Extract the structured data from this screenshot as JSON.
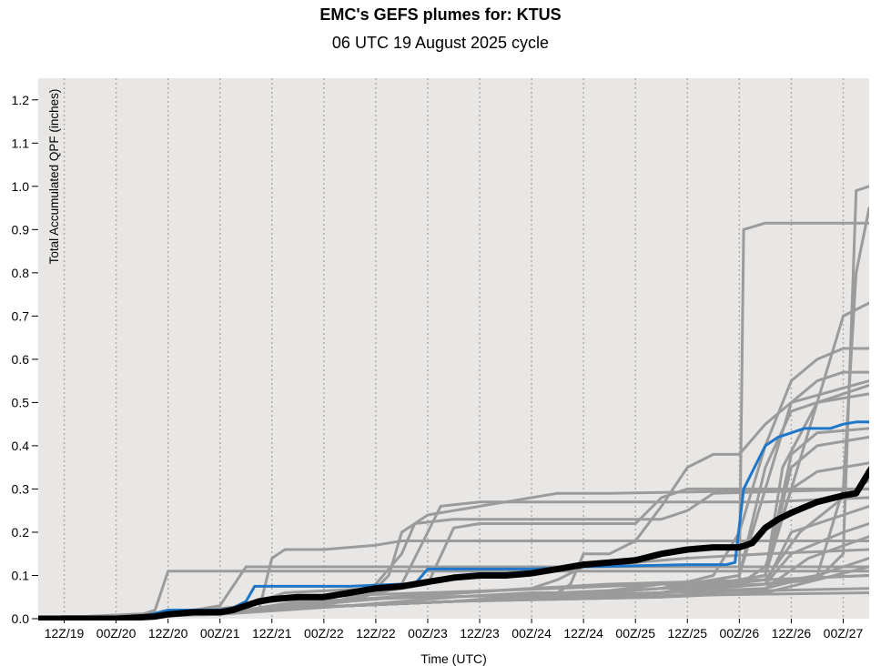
{
  "chart_data": {
    "type": "line",
    "title": "EMC's GEFS plumes for: KTUS",
    "subtitle": "06 UTC 19 August 2025 cycle",
    "xlabel": "Time (UTC)",
    "ylabel": "Total Accumulated QPF (inches)",
    "x_tick_labels": [
      "12Z/19",
      "00Z/20",
      "12Z/20",
      "00Z/21",
      "12Z/21",
      "00Z/22",
      "12Z/22",
      "00Z/23",
      "12Z/23",
      "00Z/24",
      "12Z/24",
      "00Z/25",
      "12Z/25",
      "00Z/26",
      "12Z/26",
      "00Z/27"
    ],
    "x_units": "hours after 06 UTC 19 August 2025",
    "x_range": [
      0,
      192
    ],
    "x_tick_hours": [
      6,
      18,
      30,
      42,
      54,
      66,
      78,
      90,
      102,
      114,
      126,
      138,
      150,
      162,
      174,
      186
    ],
    "ylim": [
      0,
      1.25
    ],
    "y_ticks": [
      0.0,
      0.1,
      0.2,
      0.3,
      0.4,
      0.5,
      0.6,
      0.7,
      0.8,
      0.9,
      1.0,
      1.1,
      1.2
    ],
    "y_tick_labels": [
      "0.0",
      "0.1",
      "0.2",
      "0.3",
      "0.4",
      "0.5",
      "0.6",
      "0.7",
      "0.8",
      "0.9",
      "1.0",
      "1.1",
      "1.2"
    ],
    "grid": "vertical dotted at x ticks",
    "colors": {
      "plot_bg": "#e8e7e5",
      "member": "#9b9b9b",
      "control": "#1f77c9",
      "mean": "#000000",
      "grid": "#aaaaaa"
    },
    "members": [
      [
        [
          0,
          0
        ],
        [
          6,
          0.005
        ],
        [
          18,
          0.005
        ],
        [
          24,
          0.01
        ],
        [
          27,
          0.02
        ],
        [
          30,
          0.11
        ],
        [
          42,
          0.11
        ],
        [
          60,
          0.11
        ],
        [
          90,
          0.11
        ],
        [
          192,
          0.11
        ]
      ],
      [
        [
          0,
          0
        ],
        [
          6,
          0.005
        ],
        [
          24,
          0.005
        ],
        [
          30,
          0.01
        ],
        [
          42,
          0.03
        ],
        [
          48,
          0.12
        ],
        [
          66,
          0.12
        ],
        [
          192,
          0.12
        ]
      ],
      [
        [
          0,
          0
        ],
        [
          24,
          0.005
        ],
        [
          42,
          0.015
        ],
        [
          51,
          0.02
        ],
        [
          54,
          0.14
        ],
        [
          57,
          0.16
        ],
        [
          66,
          0.16
        ],
        [
          78,
          0.17
        ],
        [
          84,
          0.18
        ],
        [
          90,
          0.18
        ],
        [
          192,
          0.18
        ]
      ],
      [
        [
          0,
          0
        ],
        [
          30,
          0.01
        ],
        [
          48,
          0.03
        ],
        [
          54,
          0.05
        ],
        [
          57,
          0.06
        ],
        [
          78,
          0.07
        ],
        [
          81,
          0.1
        ],
        [
          84,
          0.2
        ],
        [
          90,
          0.24
        ],
        [
          96,
          0.25
        ],
        [
          108,
          0.27
        ],
        [
          120,
          0.29
        ],
        [
          132,
          0.29
        ],
        [
          192,
          0.3
        ]
      ],
      [
        [
          0,
          0
        ],
        [
          30,
          0.01
        ],
        [
          48,
          0.02
        ],
        [
          66,
          0.03
        ],
        [
          72,
          0.05
        ],
        [
          78,
          0.08
        ],
        [
          84,
          0.15
        ],
        [
          87,
          0.22
        ],
        [
          96,
          0.23
        ],
        [
          120,
          0.23
        ],
        [
          144,
          0.23
        ],
        [
          150,
          0.25
        ],
        [
          156,
          0.29
        ],
        [
          192,
          0.3
        ]
      ],
      [
        [
          0,
          0
        ],
        [
          48,
          0.02
        ],
        [
          72,
          0.04
        ],
        [
          84,
          0.08
        ],
        [
          90,
          0.2
        ],
        [
          93,
          0.26
        ],
        [
          102,
          0.27
        ],
        [
          132,
          0.27
        ],
        [
          168,
          0.27
        ],
        [
          192,
          0.28
        ]
      ],
      [
        [
          0,
          0
        ],
        [
          48,
          0.02
        ],
        [
          66,
          0.03
        ],
        [
          78,
          0.06
        ],
        [
          90,
          0.08
        ],
        [
          96,
          0.21
        ],
        [
          102,
          0.22
        ],
        [
          120,
          0.22
        ],
        [
          138,
          0.22
        ],
        [
          144,
          0.28
        ],
        [
          150,
          0.3
        ],
        [
          192,
          0.3
        ]
      ],
      [
        [
          0,
          0
        ],
        [
          48,
          0.02
        ],
        [
          72,
          0.03
        ],
        [
          96,
          0.05
        ],
        [
          114,
          0.06
        ],
        [
          120,
          0.06
        ],
        [
          123,
          0.08
        ],
        [
          126,
          0.15
        ],
        [
          132,
          0.15
        ],
        [
          138,
          0.18
        ],
        [
          144,
          0.26
        ],
        [
          150,
          0.35
        ],
        [
          156,
          0.38
        ],
        [
          162,
          0.38
        ],
        [
          168,
          0.45
        ],
        [
          174,
          0.5
        ],
        [
          192,
          0.55
        ]
      ],
      [
        [
          0,
          0
        ],
        [
          48,
          0.02
        ],
        [
          72,
          0.03
        ],
        [
          96,
          0.04
        ],
        [
          120,
          0.05
        ],
        [
          144,
          0.08
        ],
        [
          162,
          0.08
        ],
        [
          163,
          0.9
        ],
        [
          168,
          0.915
        ],
        [
          180,
          0.915
        ],
        [
          192,
          0.915
        ]
      ],
      [
        [
          0,
          0
        ],
        [
          48,
          0.02
        ],
        [
          72,
          0.03
        ],
        [
          96,
          0.04
        ],
        [
          120,
          0.06
        ],
        [
          144,
          0.07
        ],
        [
          168,
          0.08
        ],
        [
          180,
          0.09
        ],
        [
          186,
          0.15
        ],
        [
          189,
          0.99
        ],
        [
          192,
          1.0
        ]
      ],
      [
        [
          0,
          0
        ],
        [
          48,
          0.02
        ],
        [
          72,
          0.03
        ],
        [
          96,
          0.04
        ],
        [
          144,
          0.07
        ],
        [
          168,
          0.08
        ],
        [
          180,
          0.1
        ],
        [
          186,
          0.3
        ],
        [
          189,
          0.8
        ],
        [
          192,
          0.95
        ]
      ],
      [
        [
          0,
          0
        ],
        [
          48,
          0.02
        ],
        [
          96,
          0.04
        ],
        [
          144,
          0.07
        ],
        [
          162,
          0.08
        ],
        [
          168,
          0.12
        ],
        [
          174,
          0.3
        ],
        [
          180,
          0.5
        ],
        [
          186,
          0.7
        ],
        [
          192,
          0.73
        ]
      ],
      [
        [
          0,
          0
        ],
        [
          48,
          0.02
        ],
        [
          96,
          0.04
        ],
        [
          144,
          0.07
        ],
        [
          156,
          0.1
        ],
        [
          162,
          0.2
        ],
        [
          168,
          0.4
        ],
        [
          174,
          0.55
        ],
        [
          180,
          0.6
        ],
        [
          186,
          0.625
        ],
        [
          192,
          0.625
        ]
      ],
      [
        [
          0,
          0
        ],
        [
          48,
          0.02
        ],
        [
          96,
          0.04
        ],
        [
          144,
          0.07
        ],
        [
          162,
          0.1
        ],
        [
          168,
          0.3
        ],
        [
          174,
          0.5
        ],
        [
          180,
          0.55
        ],
        [
          186,
          0.57
        ],
        [
          192,
          0.57
        ]
      ],
      [
        [
          0,
          0
        ],
        [
          48,
          0.02
        ],
        [
          96,
          0.04
        ],
        [
          144,
          0.07
        ],
        [
          162,
          0.1
        ],
        [
          168,
          0.35
        ],
        [
          174,
          0.48
        ],
        [
          186,
          0.52
        ],
        [
          192,
          0.54
        ]
      ],
      [
        [
          0,
          0
        ],
        [
          48,
          0.02
        ],
        [
          96,
          0.04
        ],
        [
          144,
          0.06
        ],
        [
          168,
          0.1
        ],
        [
          172,
          0.35
        ],
        [
          180,
          0.5
        ],
        [
          192,
          0.52
        ]
      ],
      [
        [
          0,
          0
        ],
        [
          48,
          0.02
        ],
        [
          96,
          0.04
        ],
        [
          144,
          0.06
        ],
        [
          168,
          0.1
        ],
        [
          174,
          0.38
        ],
        [
          180,
          0.43
        ],
        [
          192,
          0.44
        ]
      ],
      [
        [
          0,
          0
        ],
        [
          48,
          0.02
        ],
        [
          96,
          0.04
        ],
        [
          144,
          0.06
        ],
        [
          168,
          0.1
        ],
        [
          174,
          0.35
        ],
        [
          180,
          0.4
        ],
        [
          192,
          0.42
        ]
      ],
      [
        [
          0,
          0
        ],
        [
          48,
          0.02
        ],
        [
          96,
          0.04
        ],
        [
          144,
          0.06
        ],
        [
          168,
          0.1
        ],
        [
          174,
          0.3
        ],
        [
          180,
          0.34
        ],
        [
          192,
          0.36
        ]
      ],
      [
        [
          0,
          0
        ],
        [
          48,
          0.02
        ],
        [
          96,
          0.04
        ],
        [
          144,
          0.06
        ],
        [
          168,
          0.09
        ],
        [
          176,
          0.2
        ],
        [
          186,
          0.28
        ],
        [
          192,
          0.32
        ]
      ],
      [
        [
          0,
          0
        ],
        [
          48,
          0.02
        ],
        [
          96,
          0.04
        ],
        [
          144,
          0.06
        ],
        [
          168,
          0.08
        ],
        [
          174,
          0.2
        ],
        [
          186,
          0.24
        ],
        [
          192,
          0.26
        ]
      ],
      [
        [
          0,
          0
        ],
        [
          48,
          0.02
        ],
        [
          96,
          0.04
        ],
        [
          144,
          0.06
        ],
        [
          168,
          0.08
        ],
        [
          174,
          0.15
        ],
        [
          186,
          0.2
        ],
        [
          192,
          0.22
        ]
      ],
      [
        [
          0,
          0
        ],
        [
          48,
          0.02
        ],
        [
          96,
          0.04
        ],
        [
          144,
          0.06
        ],
        [
          168,
          0.07
        ],
        [
          178,
          0.14
        ],
        [
          192,
          0.19
        ]
      ],
      [
        [
          0,
          0
        ],
        [
          48,
          0.02
        ],
        [
          96,
          0.04
        ],
        [
          144,
          0.05
        ],
        [
          168,
          0.07
        ],
        [
          180,
          0.1
        ],
        [
          192,
          0.14
        ]
      ],
      [
        [
          0,
          0
        ],
        [
          48,
          0.02
        ],
        [
          96,
          0.04
        ],
        [
          144,
          0.05
        ],
        [
          168,
          0.06
        ],
        [
          192,
          0.12
        ]
      ],
      [
        [
          0,
          0
        ],
        [
          42,
          0.02
        ],
        [
          60,
          0.05
        ],
        [
          90,
          0.06
        ],
        [
          120,
          0.07
        ],
        [
          144,
          0.08
        ],
        [
          168,
          0.09
        ],
        [
          192,
          0.1
        ]
      ],
      [
        [
          0,
          0
        ],
        [
          42,
          0.01
        ],
        [
          60,
          0.04
        ],
        [
          90,
          0.05
        ],
        [
          144,
          0.06
        ],
        [
          192,
          0.07
        ]
      ],
      [
        [
          0,
          0
        ],
        [
          42,
          0.01
        ],
        [
          72,
          0.03
        ],
        [
          120,
          0.05
        ],
        [
          192,
          0.06
        ]
      ],
      [
        [
          0,
          0
        ],
        [
          42,
          0.015
        ],
        [
          66,
          0.04
        ],
        [
          96,
          0.06
        ],
        [
          132,
          0.08
        ],
        [
          168,
          0.09
        ],
        [
          192,
          0.1
        ]
      ],
      [
        [
          0,
          0
        ],
        [
          48,
          0.02
        ],
        [
          84,
          0.05
        ],
        [
          114,
          0.07
        ],
        [
          120,
          0.09
        ],
        [
          126,
          0.12
        ],
        [
          138,
          0.13
        ],
        [
          150,
          0.14
        ],
        [
          168,
          0.15
        ],
        [
          192,
          0.16
        ]
      ]
    ],
    "control": [
      [
        0,
        0
      ],
      [
        18,
        0
      ],
      [
        24,
        0.005
      ],
      [
        28,
        0.015
      ],
      [
        30,
        0.02
      ],
      [
        42,
        0.02
      ],
      [
        45,
        0.025
      ],
      [
        48,
        0.04
      ],
      [
        50,
        0.075
      ],
      [
        56,
        0.075
      ],
      [
        72,
        0.075
      ],
      [
        84,
        0.08
      ],
      [
        87,
        0.08
      ],
      [
        90,
        0.115
      ],
      [
        102,
        0.115
      ],
      [
        114,
        0.115
      ],
      [
        126,
        0.12
      ],
      [
        150,
        0.125
      ],
      [
        159,
        0.125
      ],
      [
        161,
        0.13
      ],
      [
        163,
        0.3
      ],
      [
        165,
        0.34
      ],
      [
        168,
        0.4
      ],
      [
        171,
        0.42
      ],
      [
        177,
        0.44
      ],
      [
        183,
        0.44
      ],
      [
        186,
        0.45
      ],
      [
        189,
        0.455
      ],
      [
        192,
        0.455
      ]
    ],
    "mean": [
      [
        0,
        0
      ],
      [
        18,
        0
      ],
      [
        27,
        0.005
      ],
      [
        30,
        0.01
      ],
      [
        36,
        0.015
      ],
      [
        42,
        0.015
      ],
      [
        45,
        0.02
      ],
      [
        48,
        0.03
      ],
      [
        51,
        0.04
      ],
      [
        54,
        0.045
      ],
      [
        60,
        0.05
      ],
      [
        66,
        0.05
      ],
      [
        72,
        0.06
      ],
      [
        78,
        0.07
      ],
      [
        84,
        0.075
      ],
      [
        90,
        0.085
      ],
      [
        96,
        0.095
      ],
      [
        102,
        0.1
      ],
      [
        108,
        0.1
      ],
      [
        114,
        0.105
      ],
      [
        120,
        0.115
      ],
      [
        126,
        0.125
      ],
      [
        132,
        0.13
      ],
      [
        138,
        0.135
      ],
      [
        144,
        0.15
      ],
      [
        150,
        0.16
      ],
      [
        156,
        0.165
      ],
      [
        162,
        0.165
      ],
      [
        165,
        0.175
      ],
      [
        168,
        0.21
      ],
      [
        171,
        0.23
      ],
      [
        174,
        0.245
      ],
      [
        180,
        0.27
      ],
      [
        186,
        0.285
      ],
      [
        189,
        0.29
      ],
      [
        192,
        0.34
      ],
      [
        193,
        0.355
      ]
    ]
  }
}
